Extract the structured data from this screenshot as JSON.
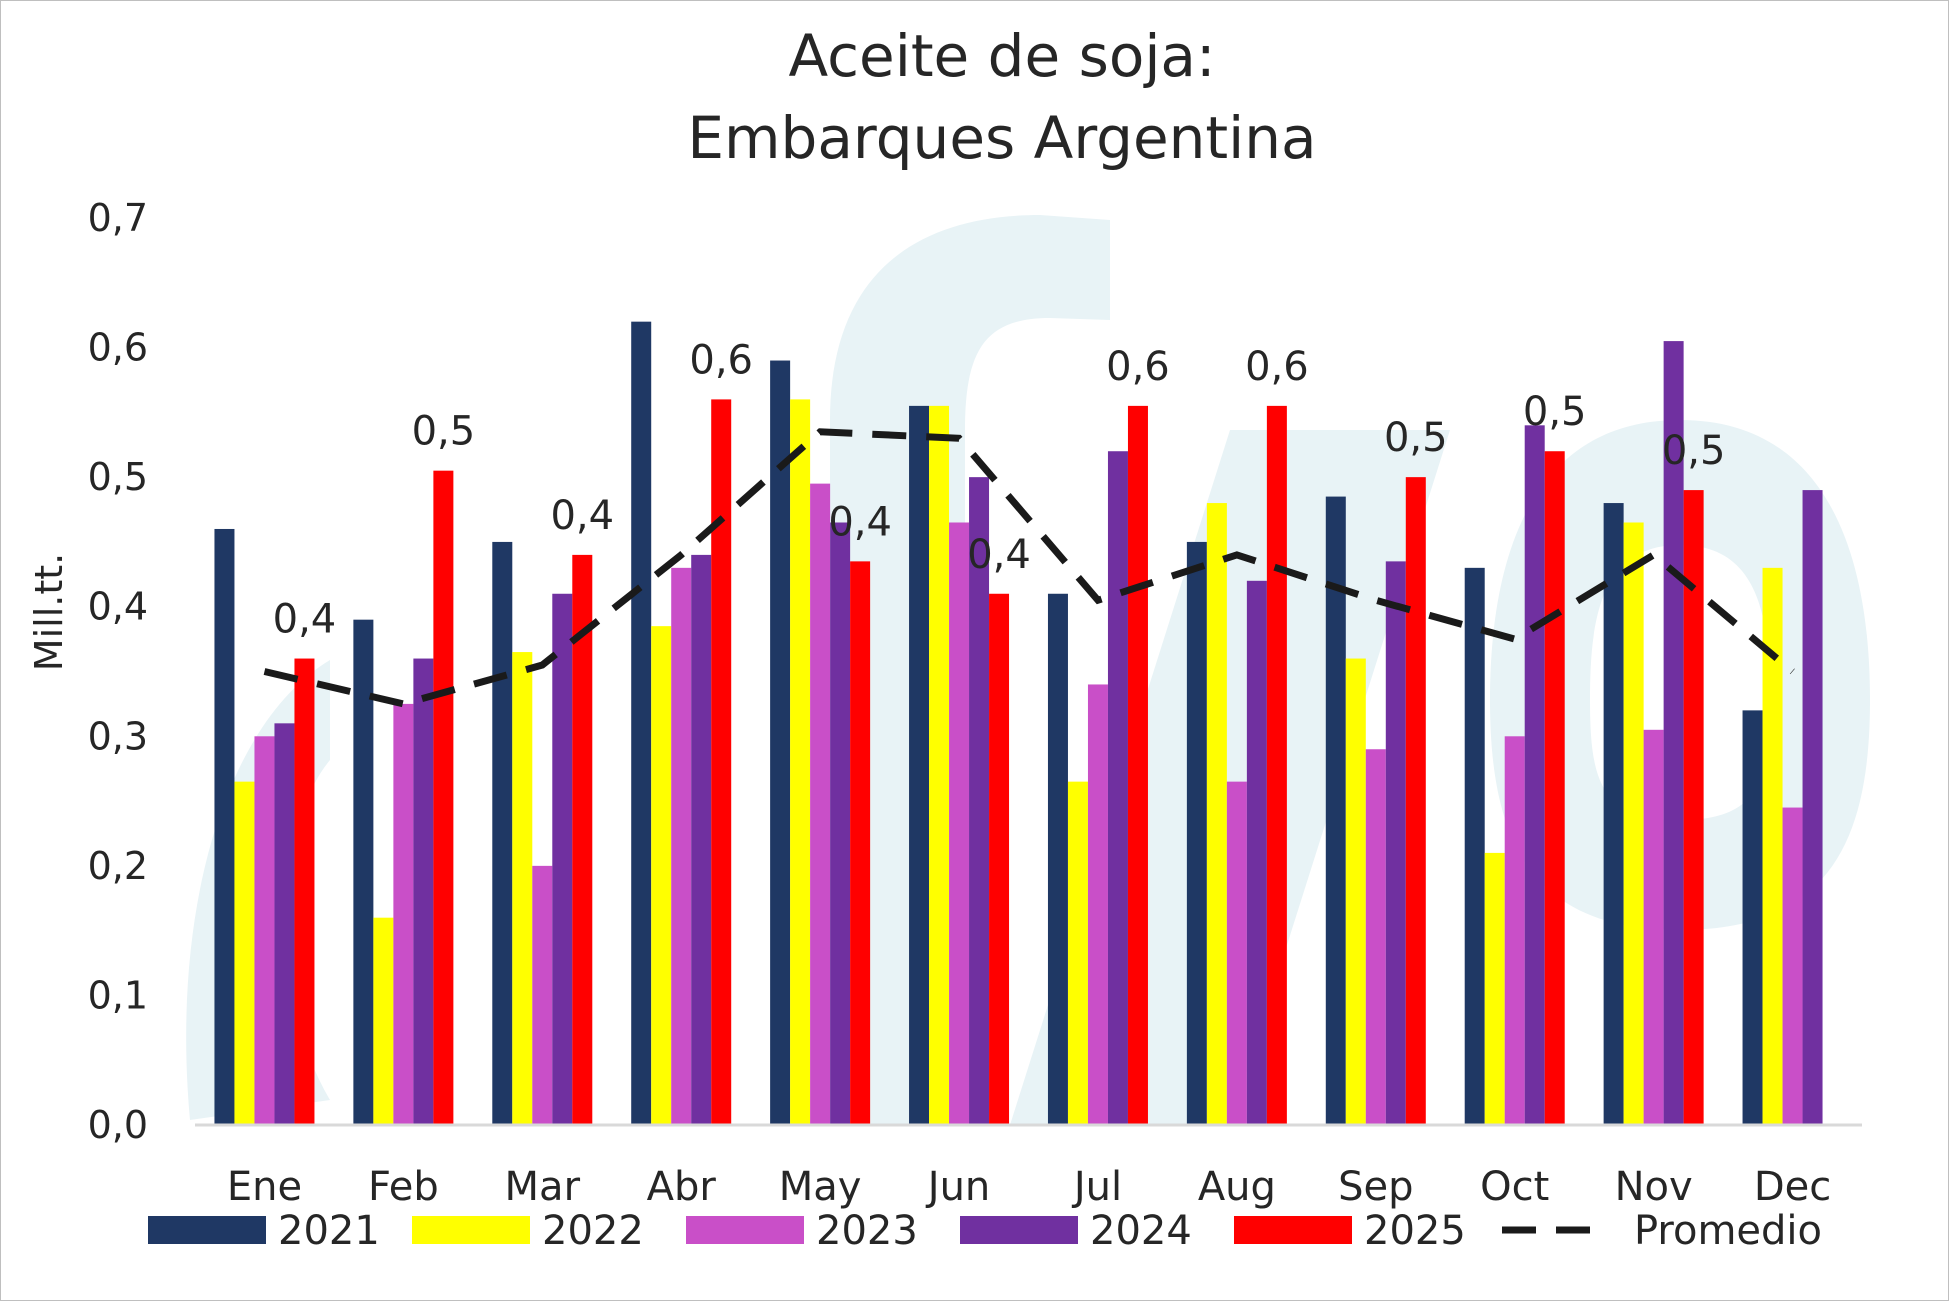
{
  "chart_data": {
    "type": "bar",
    "title": [
      "Aceite de soja:",
      "Embarques Argentina"
    ],
    "ylabel": "Mill.tt.",
    "xlabel": "",
    "ylim": [
      0,
      0.7
    ],
    "yticks": [
      0.0,
      0.1,
      0.2,
      0.3,
      0.4,
      0.5,
      0.6,
      0.7
    ],
    "ytick_labels": [
      "0,0",
      "0,1",
      "0,2",
      "0,3",
      "0,4",
      "0,5",
      "0,6",
      "0,7"
    ],
    "grid": false,
    "legend_position": "bottom",
    "categories": [
      "Ene",
      "Feb",
      "Mar",
      "Abr",
      "May",
      "Jun",
      "Jul",
      "Aug",
      "Sep",
      "Oct",
      "Nov",
      "Dec"
    ],
    "series": [
      {
        "name": "2021",
        "color": "#1f3864",
        "values": [
          0.46,
          0.39,
          0.45,
          0.62,
          0.59,
          0.555,
          0.41,
          0.45,
          0.485,
          0.43,
          0.48,
          0.32
        ]
      },
      {
        "name": "2022",
        "color": "#ffff00",
        "values": [
          0.265,
          0.16,
          0.365,
          0.385,
          0.56,
          0.555,
          0.265,
          0.48,
          0.36,
          0.21,
          0.465,
          0.43
        ]
      },
      {
        "name": "2023",
        "color": "#c94fc8",
        "values": [
          0.3,
          0.325,
          0.2,
          0.43,
          0.495,
          0.465,
          0.34,
          0.265,
          0.29,
          0.3,
          0.305,
          0.245
        ]
      },
      {
        "name": "2024",
        "color": "#7030a0",
        "values": [
          0.31,
          0.36,
          0.41,
          0.44,
          0.465,
          0.5,
          0.52,
          0.42,
          0.435,
          0.54,
          0.605,
          0.49
        ]
      },
      {
        "name": "2025",
        "color": "#ff0000",
        "values": [
          0.36,
          0.505,
          0.44,
          0.56,
          0.435,
          0.41,
          0.555,
          0.555,
          0.5,
          0.52,
          0.49,
          null
        ]
      },
      {
        "name": "Promedio",
        "type": "line",
        "style": "dashed",
        "color": "#1a1a1a",
        "values": [
          0.35,
          0.325,
          0.355,
          0.44,
          0.535,
          0.53,
          0.405,
          0.44,
          0.405,
          0.375,
          0.44,
          0.35
        ]
      }
    ],
    "data_labels": [
      "0,4",
      "0,5",
      "0,4",
      "0,6",
      "0,4",
      "0,4",
      "0,6",
      "0,6",
      "0,5",
      "0,5",
      "0,5",
      ""
    ]
  }
}
